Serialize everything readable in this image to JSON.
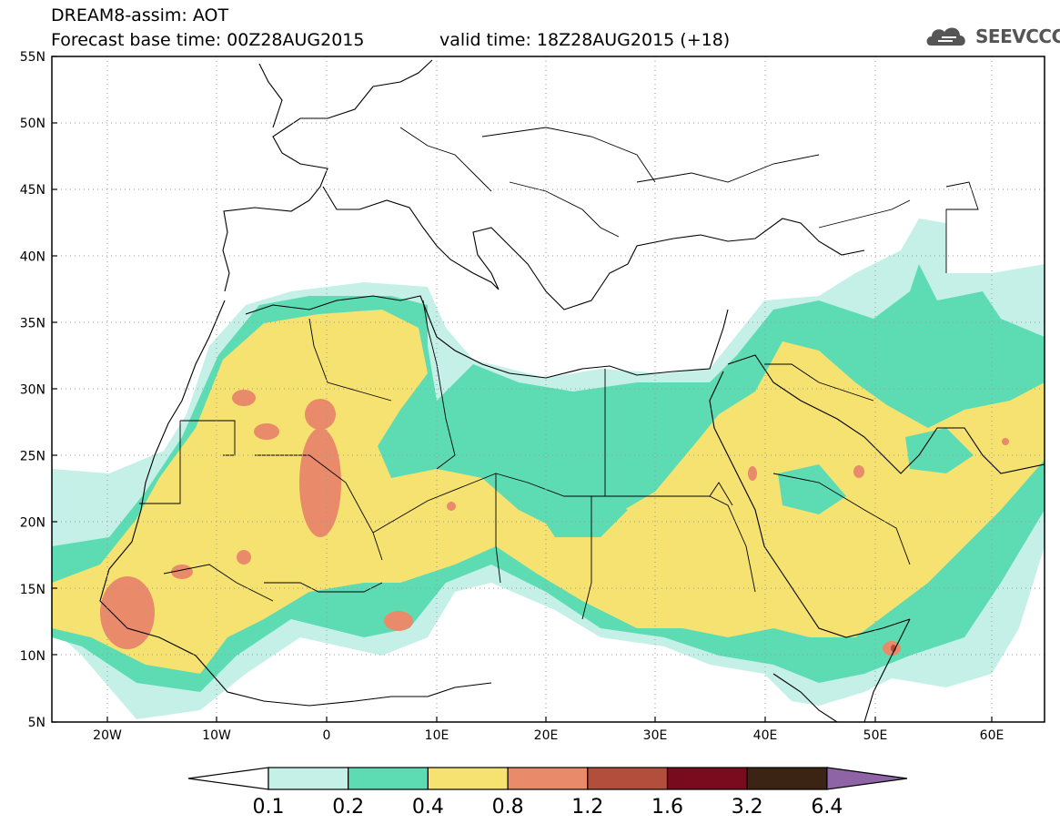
{
  "title": {
    "line1": "DREAM8-assim: AOT",
    "line2": "Forecast base time: 00Z28AUG2015",
    "valid": "valid time: 18Z28AUG2015 (+18)"
  },
  "logo": {
    "text": "SEEVCCC",
    "icon": "cloud-icon"
  },
  "axes": {
    "lat_labels": [
      "55N",
      "50N",
      "45N",
      "40N",
      "35N",
      "30N",
      "25N",
      "20N",
      "15N",
      "10N",
      "5N"
    ],
    "lon_labels": [
      "20W",
      "10W",
      "0",
      "10E",
      "20E",
      "30E",
      "40E",
      "50E",
      "60E"
    ],
    "lat_range": [
      5,
      55
    ],
    "lon_range": [
      -25,
      65
    ]
  },
  "colorbar": {
    "labels": [
      "0.1",
      "0.2",
      "0.4",
      "0.8",
      "1.2",
      "1.6",
      "3.2",
      "6.4"
    ],
    "colors": [
      "#ffffff",
      "#c4f0e8",
      "#5ddcb4",
      "#f6e270",
      "#e98a6a",
      "#b44e3c",
      "#7a0a1e",
      "#3b2414",
      "#8e64a6"
    ]
  },
  "colors": {
    "land": "#ffffff",
    "level_01": "#c4f0e8",
    "level_02": "#5ddcb4",
    "level_04": "#f6e270",
    "level_08": "#e98a6a"
  }
}
